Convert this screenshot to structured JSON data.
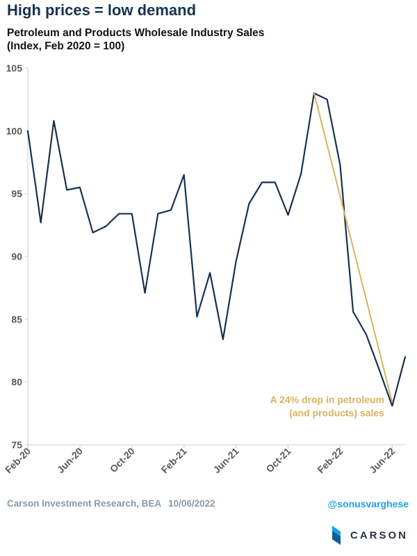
{
  "header": {
    "title": "High prices = low demand",
    "subtitle_line1": "Petroleum and Products Wholesale Industry Sales",
    "subtitle_line2": "(Index, Feb 2020 = 100)"
  },
  "footer": {
    "source": "Carson Investment Research, BEA",
    "date": "10/06/2022",
    "handle": "@sonusvarghese",
    "logo_text": "CARSON"
  },
  "colors": {
    "series": "#16324f",
    "annotation": "#d8b260",
    "axis": "#cccccc",
    "tick_text": "#595959"
  },
  "chart_data": {
    "type": "line",
    "title": "Petroleum and Products Wholesale Industry Sales",
    "ylim": [
      75,
      105
    ],
    "yticks": [
      75,
      80,
      85,
      90,
      95,
      100,
      105
    ],
    "x": [
      "2020-02",
      "2020-03",
      "2020-04",
      "2020-05",
      "2020-06",
      "2020-07",
      "2020-08",
      "2020-09",
      "2020-10",
      "2020-11",
      "2020-12",
      "2021-01",
      "2021-02",
      "2021-03",
      "2021-04",
      "2021-05",
      "2021-06",
      "2021-07",
      "2021-08",
      "2021-09",
      "2021-10",
      "2021-11",
      "2021-12",
      "2022-01",
      "2022-02",
      "2022-03",
      "2022-04",
      "2022-05",
      "2022-06",
      "2022-07"
    ],
    "x_tick_labels": [
      {
        "x": "2020-02",
        "label": "Feb-20"
      },
      {
        "x": "2020-06",
        "label": "Jun-20"
      },
      {
        "x": "2020-10",
        "label": "Oct-20"
      },
      {
        "x": "2021-02",
        "label": "Feb-21"
      },
      {
        "x": "2021-06",
        "label": "Jun-21"
      },
      {
        "x": "2021-10",
        "label": "Oct-21"
      },
      {
        "x": "2022-02",
        "label": "Feb-22"
      },
      {
        "x": "2022-06",
        "label": "Jun-22"
      }
    ],
    "series": [
      {
        "values": [
          100.0,
          92.7,
          100.8,
          95.3,
          95.5,
          91.9,
          92.4,
          93.4,
          93.4,
          87.1,
          93.4,
          93.7,
          96.5,
          85.2,
          88.7,
          83.4,
          89.6,
          94.2,
          95.9,
          95.9,
          93.3,
          96.6,
          103.0,
          102.5,
          97.3,
          85.6,
          83.8,
          81.0,
          78.1,
          82.0
        ]
      }
    ],
    "annotation": {
      "text_line1": "A 24% drop in petroleum",
      "text_line2": "(and products) sales",
      "from": {
        "x": "2021-12",
        "y": 103.0
      },
      "to": {
        "x": "2022-06",
        "y": 78.4
      }
    }
  }
}
